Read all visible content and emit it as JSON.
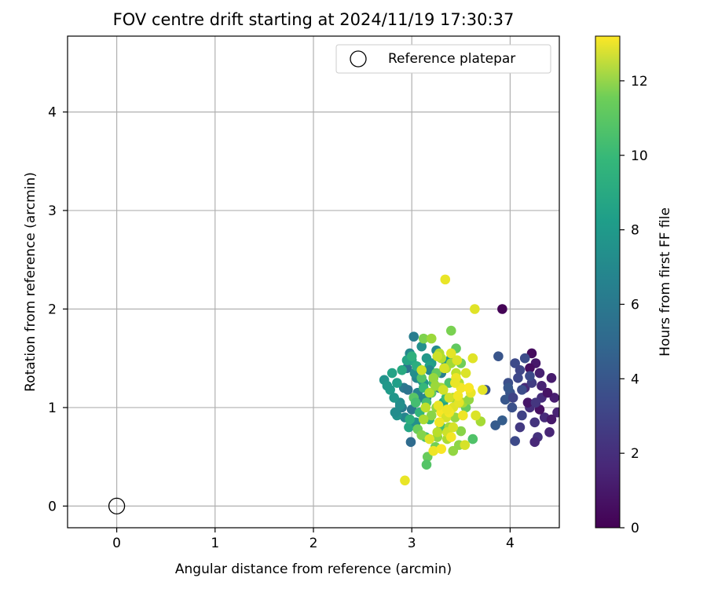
{
  "chart_data": {
    "type": "scatter",
    "title": "FOV centre drift starting at 2024/11/19 17:30:37",
    "xlabel": "Angular distance from reference (arcmin)",
    "ylabel": "Rotation from reference (arcmin)",
    "xlim": [
      -0.5,
      4.5
    ],
    "ylim": [
      -0.22,
      4.77
    ],
    "xticks": [
      0,
      1,
      2,
      3,
      4
    ],
    "yticks": [
      0,
      1,
      2,
      3,
      4
    ],
    "grid": true,
    "colormap": "viridis",
    "colorbar": {
      "label": "Hours from first FF file",
      "range": [
        0,
        13.2
      ],
      "ticks": [
        0,
        2,
        4,
        6,
        8,
        10,
        12
      ]
    },
    "legend": {
      "placement": "top-right",
      "entries": [
        {
          "label": "Reference platepar",
          "marker": "open-circle"
        }
      ]
    },
    "reference_point": {
      "x": 0,
      "y": 0
    },
    "series": [
      {
        "x": [
          3.92,
          4.22,
          4.26,
          4.3,
          4.15,
          4.42,
          4.32,
          4.2,
          4.48,
          4.25,
          4.35,
          4.1,
          4.4,
          4.28,
          4.18,
          4.45,
          4.22,
          4.3,
          4.38,
          4.25,
          4.12,
          4.2,
          4.42,
          4.32,
          4.26,
          4.05,
          3.98,
          4.1,
          4.0,
          4.15,
          3.95,
          4.08,
          4.2,
          3.88,
          4.02,
          3.85,
          4.12,
          3.92,
          4.05,
          3.98,
          4.03,
          3.75,
          3.02,
          2.98,
          3.1,
          2.95,
          3.05,
          2.92,
          3.15,
          3.08,
          2.88,
          3.0,
          3.2,
          2.93,
          3.12,
          3.03,
          2.9,
          3.18,
          2.97,
          3.06,
          3.22,
          2.99,
          3.25,
          3.3,
          3.1,
          3.35,
          3.15,
          3.4,
          2.85,
          3.0,
          3.28,
          3.04,
          3.32,
          3.18,
          2.96,
          2.72,
          2.78,
          2.8,
          2.85,
          2.82,
          2.88,
          2.75,
          2.9,
          2.83,
          2.95,
          3.0,
          3.05,
          3.1,
          3.12,
          3.15,
          3.08,
          3.2,
          3.25,
          3.18,
          3.22,
          3.28,
          3.3,
          3.35,
          3.14,
          3.06,
          3.02,
          3.16,
          3.24,
          3.34,
          3.38,
          3.45,
          3.5,
          2.98,
          3.04,
          3.12,
          3.2,
          3.26,
          3.4,
          3.55,
          3.15,
          3.62,
          3.42,
          3.7,
          3.48,
          3.1,
          3.2,
          3.28,
          3.35,
          3.3,
          3.25,
          3.38,
          3.42,
          3.45,
          3.22,
          3.18,
          3.32,
          3.48,
          3.4,
          3.36,
          3.26,
          3.14,
          3.44,
          3.52,
          3.3,
          3.24,
          3.58,
          3.12,
          3.5,
          3.34,
          3.64,
          3.26,
          3.33,
          3.4,
          3.45,
          3.5,
          3.55,
          3.6,
          3.38,
          3.42,
          3.3,
          3.35,
          3.28,
          3.48,
          3.36,
          3.4,
          3.44,
          3.58,
          3.46,
          3.52,
          3.62,
          3.32,
          3.27,
          3.42,
          3.38,
          3.72,
          3.22,
          3.18,
          3.3,
          2.93,
          3.65,
          3.1,
          3.47,
          3.54,
          3.36
        ],
        "y": [
          2.0,
          1.55,
          1.45,
          1.35,
          1.2,
          1.3,
          1.1,
          1.0,
          0.95,
          0.85,
          0.9,
          0.8,
          0.75,
          0.7,
          1.05,
          1.1,
          1.25,
          0.98,
          1.15,
          0.65,
          0.92,
          1.4,
          0.88,
          1.22,
          1.05,
          1.45,
          1.25,
          1.38,
          1.15,
          1.5,
          1.08,
          1.3,
          1.32,
          1.52,
          1.0,
          0.82,
          1.18,
          0.87,
          0.66,
          1.2,
          1.1,
          1.18,
          1.72,
          1.55,
          1.62,
          1.4,
          1.3,
          1.2,
          1.5,
          1.1,
          1.05,
          0.98,
          1.45,
          0.9,
          1.25,
          1.35,
          1.0,
          1.42,
          0.8,
          1.15,
          1.3,
          0.65,
          1.58,
          1.35,
          1.28,
          1.45,
          1.1,
          1.5,
          0.92,
          1.48,
          1.2,
          0.85,
          1.05,
          1.38,
          1.18,
          1.28,
          1.18,
          1.35,
          1.25,
          1.1,
          1.02,
          1.22,
          1.38,
          0.95,
          1.48,
          1.52,
          1.42,
          1.3,
          1.2,
          1.05,
          0.95,
          1.15,
          1.35,
          0.88,
          1.25,
          1.0,
          0.8,
          1.1,
          0.7,
          0.78,
          1.1,
          0.5,
          0.6,
          1.4,
          1.25,
          1.6,
          1.45,
          0.88,
          1.05,
          1.7,
          0.92,
          0.7,
          1.78,
          1.0,
          0.42,
          0.68,
          0.56,
          0.86,
          0.62,
          0.72,
          1.7,
          1.55,
          1.4,
          1.2,
          1.0,
          0.8,
          1.1,
          1.35,
          1.3,
          1.15,
          0.95,
          1.25,
          1.45,
          0.68,
          0.75,
          1.0,
          0.9,
          1.05,
          1.5,
          1.22,
          1.08,
          0.88,
          0.76,
          2.3,
          2.0,
          1.52,
          1.4,
          1.55,
          1.3,
          1.2,
          1.35,
          1.15,
          1.1,
          1.0,
          0.95,
          0.9,
          0.85,
          1.05,
          0.75,
          0.7,
          1.25,
          1.2,
          1.48,
          0.92,
          1.5,
          1.18,
          1.02,
          0.8,
          0.95,
          1.18,
          0.56,
          0.68,
          0.58,
          0.26,
          0.92,
          1.38,
          1.12,
          0.62,
          0.98
        ],
        "c": [
          0.1,
          0.4,
          0.9,
          1.2,
          1.5,
          1.0,
          1.7,
          1.8,
          1.3,
          2.0,
          1.6,
          2.2,
          1.4,
          1.9,
          0.8,
          1.1,
          2.4,
          0.6,
          0.7,
          1.5,
          2.6,
          0.5,
          0.9,
          1.3,
          2.1,
          3.0,
          3.2,
          2.8,
          3.4,
          3.1,
          3.6,
          2.9,
          3.0,
          3.5,
          3.3,
          3.8,
          3.1,
          3.9,
          3.0,
          3.6,
          2.7,
          3.4,
          5.6,
          6.2,
          6.6,
          5.0,
          6.0,
          5.4,
          7.0,
          5.8,
          6.4,
          5.2,
          7.2,
          6.0,
          6.8,
          6.5,
          5.5,
          7.5,
          7.8,
          5.9,
          7.4,
          4.6,
          6.3,
          5.7,
          6.9,
          7.1,
          6.1,
          7.3,
          6.7,
          7.9,
          5.3,
          6.6,
          7.6,
          6.2,
          5.1,
          6.8,
          7.2,
          7.6,
          7.4,
          6.9,
          6.5,
          7.0,
          8.0,
          6.4,
          7.7,
          8.4,
          8.2,
          9.6,
          8.8,
          9.2,
          8.6,
          9.8,
          10.0,
          8.5,
          9.0,
          9.4,
          9.1,
          8.9,
          9.3,
          10.2,
          9.7,
          10.1,
          10.4,
          8.7,
          9.5,
          9.9,
          10.3,
          8.3,
          9.2,
          10.6,
          10.8,
          11.0,
          10.5,
          10.0,
          9.6,
          9.5,
          11.0,
          11.4,
          10.9,
          10.7,
          11.2,
          11.6,
          11.8,
          11.4,
          11.0,
          11.3,
          11.5,
          11.9,
          11.1,
          11.7,
          11.2,
          11.6,
          11.3,
          11.5,
          11.8,
          11.9,
          11.1,
          11.4,
          11.7,
          11.2,
          11.0,
          11.5,
          10.8,
          12.8,
          12.6,
          12.2,
          12.4,
          12.7,
          12.9,
          13.0,
          12.5,
          12.8,
          12.3,
          12.6,
          13.1,
          12.4,
          12.9,
          12.7,
          12.2,
          13.0,
          12.8,
          13.1,
          12.5,
          12.9,
          12.6,
          12.3,
          12.8,
          12.4,
          13.0,
          12.7,
          12.9,
          12.6,
          13.1,
          12.8,
          12.5,
          12.2,
          13.0,
          12.4,
          12.9
        ]
      }
    ]
  }
}
